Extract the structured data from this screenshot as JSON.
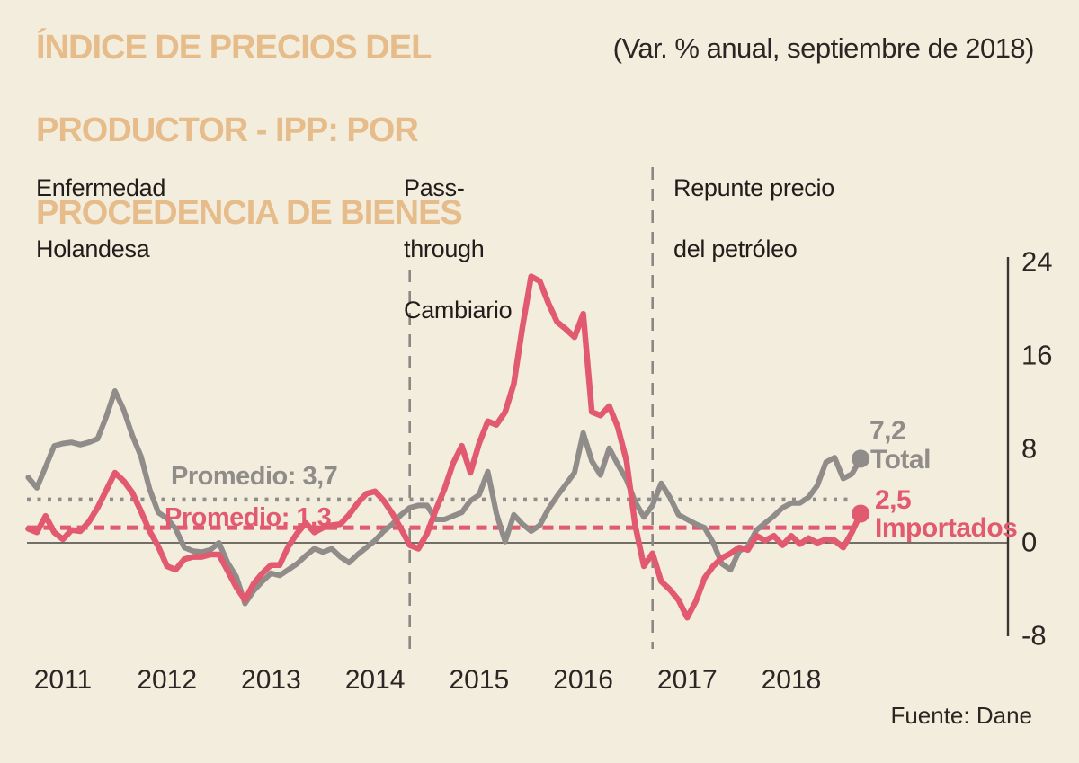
{
  "header": {
    "title_lines": [
      "ÍNDICE DE PRECIOS DEL",
      "PRODUCTOR - IPP: POR",
      "PROCEDENCIA DE BIENES"
    ],
    "subtitle": "(Var. % anual, septiembre de 2018)"
  },
  "annotations": [
    {
      "lines": [
        "Enfermedad",
        "Holandesa",
        ""
      ]
    },
    {
      "lines": [
        "Pass-",
        "through",
        "Cambiario"
      ]
    },
    {
      "lines": [
        "Repunte precio",
        "del petróleo",
        ""
      ]
    }
  ],
  "footer": {
    "source": "Fuente: Dane"
  },
  "colors": {
    "background": "#f3edde",
    "title": "#e7bc8b",
    "total_series": "#8f8c89",
    "importados_series": "#e25a70",
    "axis": "#3a3633",
    "zero_line": "#4a4542",
    "event_line": "#8a8785",
    "text": "#2b2624"
  },
  "chart_data": {
    "type": "line",
    "title": "Índice de Precios del Productor - IPP: por procedencia de bienes",
    "subtitle": "(Var. % anual, septiembre de 2018)",
    "frequency": "monthly",
    "x_start": "2010-09",
    "x_end": "2018-09",
    "x_tick_labels": [
      "2011",
      "2012",
      "2013",
      "2014",
      "2015",
      "2016",
      "2017",
      "2018"
    ],
    "y_ticks": [
      24,
      16,
      8,
      0,
      -8
    ],
    "ylim": [
      -8,
      24
    ],
    "y_axis_side": "right",
    "grid": false,
    "series": [
      {
        "name": "Total",
        "color": "#8f8c89",
        "last_value": 7.2,
        "last_value_label": "7,2",
        "average": 3.7,
        "average_label": "Promedio: 3,7",
        "line_style": "solid",
        "values": [
          5.6,
          4.7,
          6.5,
          8.3,
          8.5,
          8.6,
          8.4,
          8.6,
          8.9,
          10.8,
          13.0,
          11.4,
          9.2,
          7.4,
          4.6,
          2.6,
          2.1,
          1.2,
          -0.4,
          -0.7,
          -0.8,
          -0.6,
          0.0,
          -1.7,
          -2.9,
          -5.2,
          -4.1,
          -3.3,
          -2.6,
          -2.8,
          -2.3,
          -1.8,
          -1.1,
          -0.5,
          -0.8,
          -0.5,
          -1.2,
          -1.7,
          -1.0,
          -0.4,
          0.2,
          1.0,
          1.6,
          2.4,
          3.0,
          3.2,
          3.2,
          2.0,
          2.0,
          2.3,
          2.6,
          3.6,
          4.1,
          6.1,
          2.5,
          0.1,
          2.4,
          1.6,
          1.0,
          1.5,
          2.9,
          4.0,
          5.0,
          6.0,
          9.4,
          7.0,
          5.8,
          8.1,
          6.7,
          5.4,
          3.5,
          2.2,
          3.2,
          5.1,
          3.9,
          2.4,
          2.0,
          1.6,
          1.3,
          0.0,
          -1.8,
          -2.3,
          -0.7,
          -0.3,
          1.1,
          1.7,
          2.3,
          3.0,
          3.4,
          3.4,
          3.9,
          4.9,
          6.9,
          7.3,
          5.5,
          5.9,
          7.2
        ]
      },
      {
        "name": "Importados",
        "color": "#e25a70",
        "last_value": 2.5,
        "last_value_label": "2,5",
        "average": 1.3,
        "average_label": "Promedio: 1,3",
        "line_style": "solid",
        "values": [
          1.2,
          0.9,
          2.3,
          0.9,
          0.3,
          1.1,
          1.0,
          1.8,
          3.0,
          4.5,
          6.0,
          5.3,
          4.3,
          2.7,
          1.0,
          -0.3,
          -2.0,
          -2.3,
          -1.4,
          -1.2,
          -1.2,
          -1.0,
          -1.0,
          -2.4,
          -3.8,
          -4.9,
          -3.5,
          -2.6,
          -1.9,
          -1.9,
          -0.3,
          0.8,
          1.7,
          0.9,
          1.3,
          1.5,
          1.6,
          2.4,
          3.4,
          4.2,
          4.4,
          3.6,
          2.5,
          1.2,
          -0.2,
          -0.5,
          0.8,
          2.8,
          4.6,
          6.8,
          8.3,
          6.0,
          8.5,
          10.4,
          10.1,
          11.2,
          13.6,
          18.5,
          22.8,
          22.4,
          20.5,
          18.9,
          18.3,
          17.6,
          19.6,
          11.2,
          10.9,
          11.7,
          9.9,
          7.0,
          1.5,
          -2.0,
          -0.9,
          -3.3,
          -4.0,
          -4.9,
          -6.4,
          -5.0,
          -3.0,
          -2.0,
          -1.3,
          -0.9,
          -0.4,
          -0.6,
          0.6,
          0.2,
          0.6,
          -0.2,
          0.6,
          -0.1,
          0.4,
          0.0,
          0.3,
          0.2,
          -0.4,
          0.9,
          2.5
        ]
      }
    ],
    "event_lines": [
      {
        "x": "2014-05",
        "label": "Pass-through Cambiario"
      },
      {
        "x": "2016-09",
        "label": "Repunte precio del petróleo"
      }
    ]
  }
}
